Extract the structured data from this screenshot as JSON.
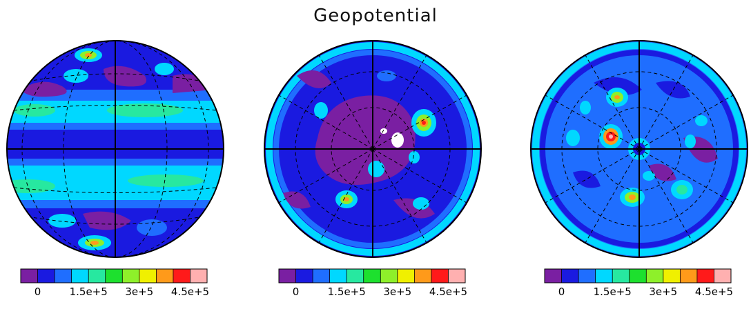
{
  "title": "Geopotential",
  "colors": {
    "levels": [
      "#7a1fa2",
      "#1a1ae0",
      "#1f6eff",
      "#00d8ff",
      "#27e8a0",
      "#1de02e",
      "#8ef02a",
      "#f0f000",
      "#ff9a1a",
      "#ff1a1a",
      "#ffb0b0"
    ],
    "background": "#ffffff",
    "outline": "#000000"
  },
  "chart_data": [
    {
      "type": "heatmap",
      "projection": "orthographic, equatorial view",
      "colorbar": {
        "tick_labels": [
          "0",
          "1.5e+5",
          "3e+5",
          "4.5e+5"
        ],
        "tick_values": [
          0,
          150000,
          300000,
          450000
        ],
        "levels": [
          -50000,
          0,
          50000,
          100000,
          150000,
          200000,
          250000,
          300000,
          350000,
          400000,
          450000,
          500000
        ]
      },
      "grid": true
    },
    {
      "type": "heatmap",
      "projection": "orthographic, polar view",
      "colorbar": {
        "tick_labels": [
          "0",
          "1.5e+5",
          "3e+5",
          "4.5e+5"
        ],
        "tick_values": [
          0,
          150000,
          300000,
          450000
        ],
        "levels": [
          -50000,
          0,
          50000,
          100000,
          150000,
          200000,
          250000,
          300000,
          350000,
          400000,
          450000,
          500000
        ]
      },
      "grid": true
    },
    {
      "type": "heatmap",
      "projection": "orthographic, polar view",
      "colorbar": {
        "tick_labels": [
          "0",
          "1.5e+5",
          "3e+5",
          "4.5e+5"
        ],
        "tick_values": [
          0,
          150000,
          300000,
          450000
        ],
        "levels": [
          -50000,
          0,
          50000,
          100000,
          150000,
          200000,
          250000,
          300000,
          350000,
          400000,
          450000,
          500000
        ]
      },
      "grid": true
    }
  ]
}
